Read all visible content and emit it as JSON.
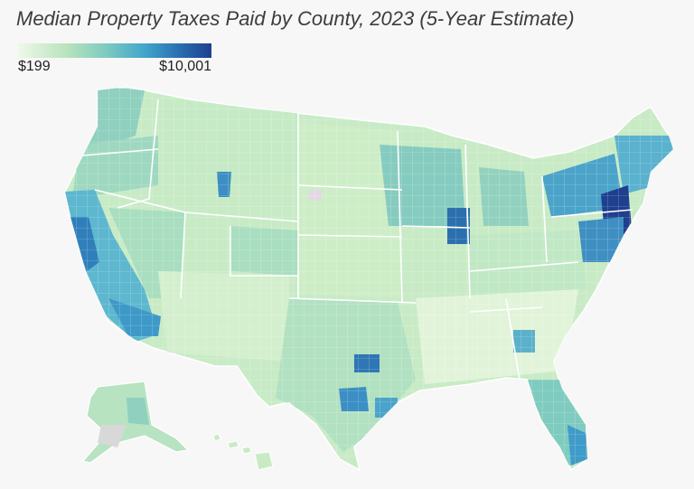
{
  "map": {
    "title": "Median Property Taxes Paid by County, 2023 (5-Year Estimate)"
  },
  "legend": {
    "min_label": "$199",
    "max_label": "$10,001",
    "color_scale": [
      "#eef8e8",
      "#b9e3bd",
      "#7fcbc0",
      "#43a6cb",
      "#2b73b3",
      "#1f3f8f"
    ]
  },
  "colors": {
    "background": "#f7f7f7",
    "no_data": "#d8d8d8",
    "borders": "#ffffff"
  }
}
